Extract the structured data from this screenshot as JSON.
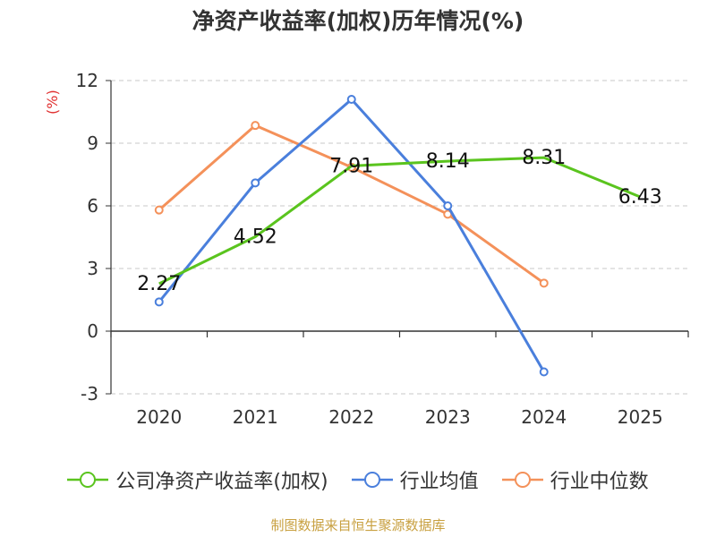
{
  "page": {
    "title": "净资产收益率(加权)历年情况(%)",
    "unit_label": "(%)",
    "source": "制图数据来自恒生聚源数据库"
  },
  "chart_data": {
    "type": "line",
    "title": "净资产收益率(加权)历年情况(%)",
    "ylabel": "(%)",
    "categories": [
      "2020",
      "2021",
      "2022",
      "2023",
      "2024",
      "2025"
    ],
    "y_ticks": [
      "12",
      "9",
      "6",
      "3",
      "0",
      "-3"
    ],
    "ylim": [
      -3,
      12
    ],
    "grid": true,
    "legend_placement": "bottom",
    "series": [
      {
        "name": "公司净资产收益率(加权)",
        "color": "#5ac41e",
        "values": [
          2.27,
          4.52,
          7.91,
          8.14,
          8.31,
          6.43
        ],
        "labels": [
          "2.27",
          "4.52",
          "7.91",
          "8.14",
          "8.31",
          "6.43"
        ]
      },
      {
        "name": "行业均值",
        "color": "#4a7fdc",
        "values": [
          1.4,
          7.1,
          11.1,
          6.0,
          -1.95,
          null
        ]
      },
      {
        "name": "行业中位数",
        "color": "#f4915a",
        "values": [
          5.8,
          9.85,
          7.85,
          5.6,
          2.3,
          null
        ]
      }
    ]
  }
}
